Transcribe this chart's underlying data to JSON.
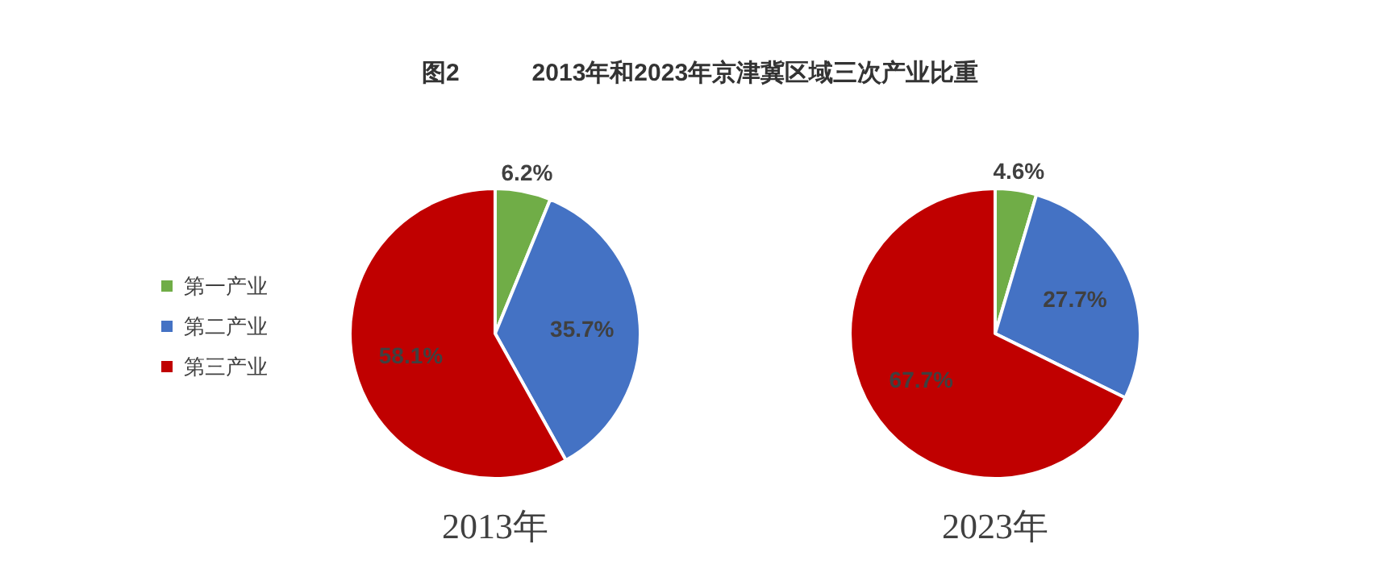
{
  "chart_data": [
    {
      "type": "pie",
      "title": "图2　　　2013年和2023年京津冀区域三次产业比重",
      "xlabel": "2013年",
      "categories": [
        "第一产业",
        "第二产业",
        "第三产业"
      ],
      "values": [
        6.2,
        35.7,
        58.1
      ],
      "value_labels": [
        "6.2%",
        "35.7%",
        "58.1%"
      ],
      "colors": [
        "#70ad47",
        "#4472c4",
        "#c00000"
      ],
      "legend": "left"
    },
    {
      "type": "pie",
      "xlabel": "2023年",
      "categories": [
        null,
        null,
        null
      ],
      "values": [
        4.6,
        27.7,
        67.7
      ],
      "value_labels": [
        "4.6%",
        "27.7%",
        "67.7%"
      ],
      "colors": [
        "#70ad47",
        "#4472c4",
        "#c00000"
      ],
      "legend": false
    }
  ]
}
